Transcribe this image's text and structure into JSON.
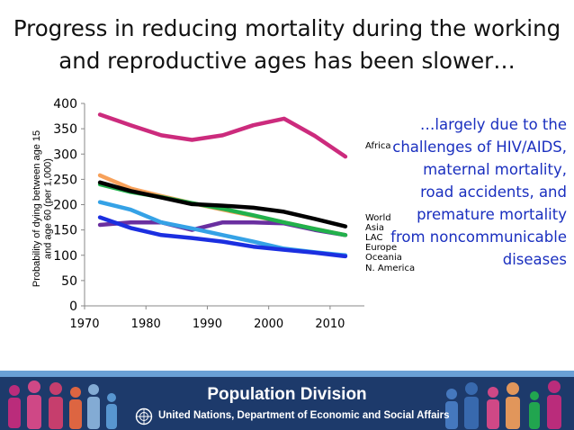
{
  "slide": {
    "title": "Progress in reducing mortality during the working and reproductive ages has been slower…",
    "side_note": "…largely due to the challenges of HIV/AIDS, maternal mortality, road accidents, and premature mortality from noncommunicable diseases"
  },
  "footer": {
    "title": "Population Division",
    "subtitle": "United Nations, Department of Economic and Social Affairs",
    "logo_icon": "un-emblem-icon",
    "decoration_icon": "people-silhouettes-icon",
    "colors": {
      "background": "#1d3a6b",
      "accent": "#6aa0d6"
    }
  },
  "chart_data": {
    "type": "line",
    "title": "",
    "xlabel": "",
    "ylabel": "Probability of dying between age 15 and age 60 (per 1,000)",
    "xlim": [
      1970,
      2015
    ],
    "ylim": [
      0,
      400
    ],
    "x_ticks": [
      1970,
      1980,
      1990,
      2000,
      2010
    ],
    "y_ticks": [
      0,
      50,
      100,
      150,
      200,
      250,
      300,
      350,
      400
    ],
    "grid": false,
    "x": [
      1972.5,
      1977.5,
      1982.5,
      1987.5,
      1992.5,
      1997.5,
      2002.5,
      2007.5,
      2012.5
    ],
    "series": [
      {
        "name": "Africa",
        "color": "#cc2b7d",
        "values": [
          378,
          357,
          337,
          328,
          337,
          357,
          370,
          336,
          295
        ]
      },
      {
        "name": "World",
        "color": "#000000",
        "values": [
          244,
          227,
          214,
          201,
          198,
          194,
          186,
          172,
          157
        ]
      },
      {
        "name": "Asia",
        "color": "#22b14c",
        "values": [
          240,
          225,
          215,
          203,
          192,
          179,
          165,
          152,
          140
        ]
      },
      {
        "name": "LAC",
        "color": "#6a2fa0",
        "values": [
          160,
          165,
          165,
          150,
          165,
          165,
          163,
          150,
          140
        ]
      },
      {
        "name": "Europe",
        "color": "#35a2e6",
        "values": [
          205,
          190,
          165,
          153,
          140,
          127,
          113,
          106,
          100
        ]
      },
      {
        "name": "Oceania",
        "color": "#f7a15a",
        "values": [
          258,
          232,
          217,
          203,
          190,
          178,
          165,
          152,
          140
        ]
      },
      {
        "name": "N. America",
        "color": "#1b2fe0",
        "values": [
          175,
          154,
          140,
          134,
          127,
          117,
          111,
          105,
          98
        ]
      }
    ]
  }
}
